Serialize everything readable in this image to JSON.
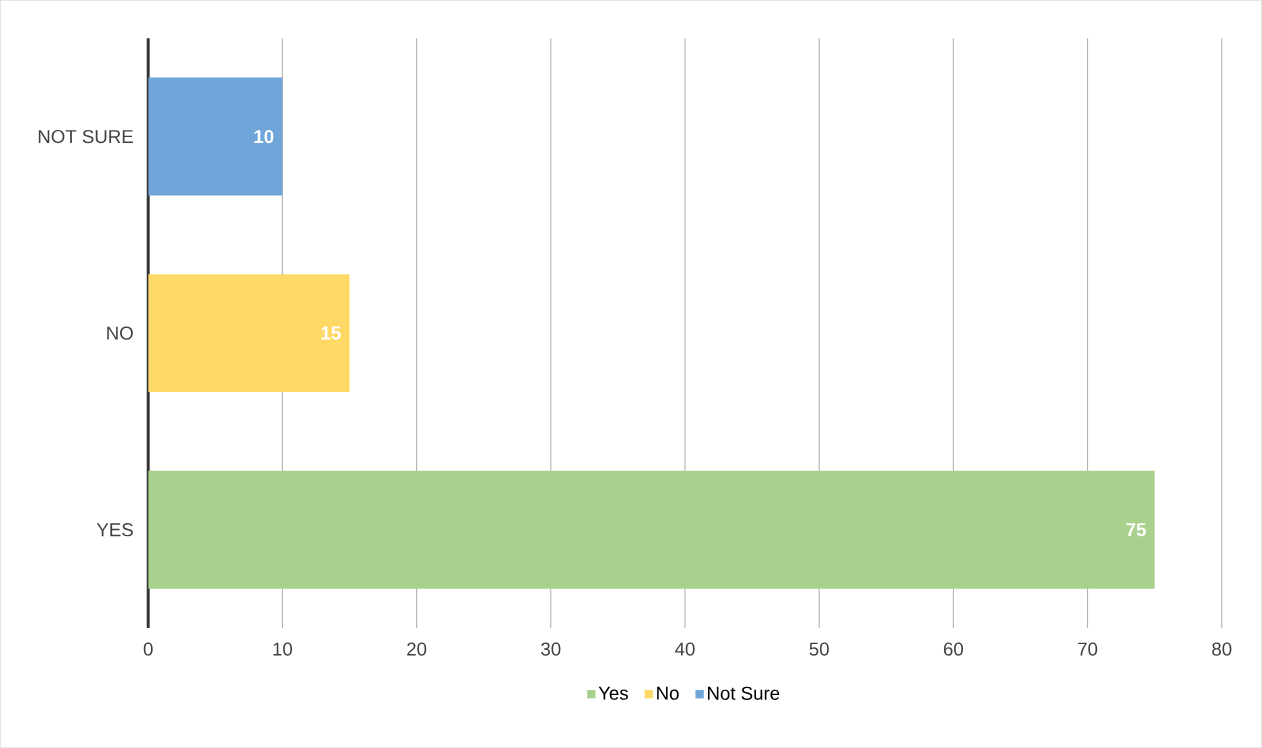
{
  "chart_data": {
    "type": "bar",
    "orientation": "horizontal",
    "categories": [
      "NOT SURE",
      "NO",
      "YES"
    ],
    "series": [
      {
        "name": "Yes",
        "color": "#a9d18e",
        "values": [
          null,
          null,
          75
        ]
      },
      {
        "name": "No",
        "color": "#ffd966",
        "values": [
          null,
          15,
          null
        ]
      },
      {
        "name": "Not Sure",
        "color": "#6fa5d9",
        "values": [
          10,
          null,
          null
        ]
      }
    ],
    "xlim": [
      0,
      80
    ],
    "xticks": [
      0,
      10,
      20,
      30,
      40,
      50,
      60,
      70,
      80
    ],
    "grid": "x",
    "legend": "bottom",
    "data_labels": true
  }
}
